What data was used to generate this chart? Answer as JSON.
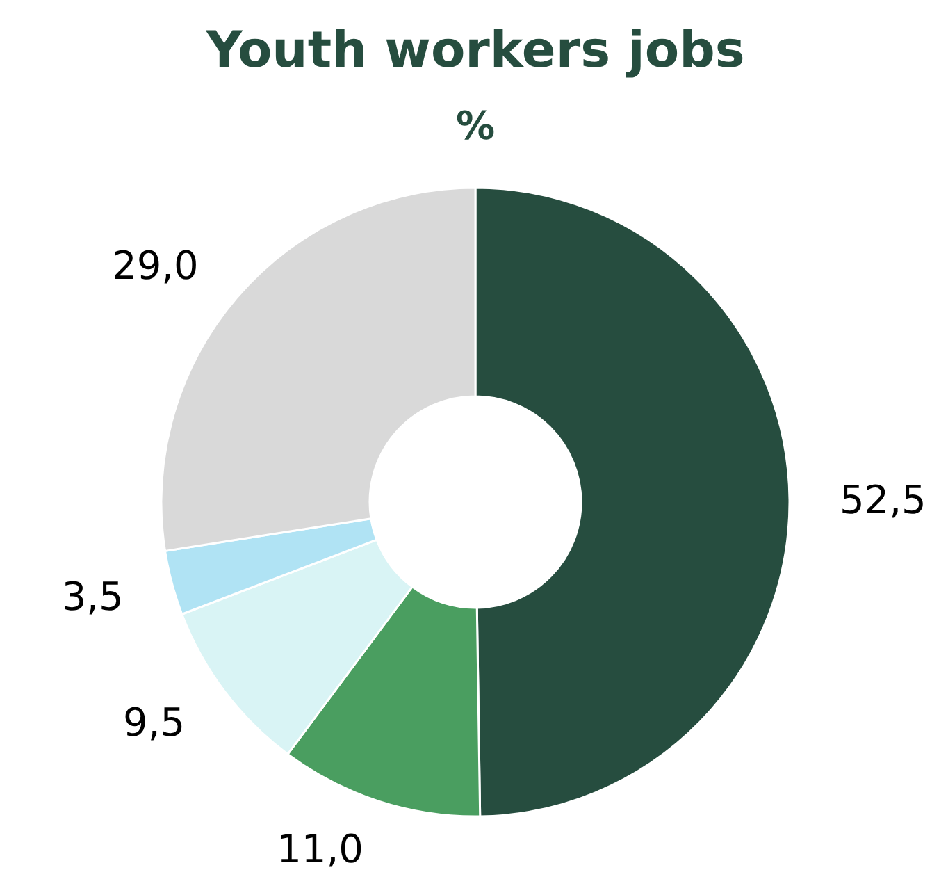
{
  "chart_data": {
    "type": "donut",
    "title": "Youth workers jobs",
    "subtitle": "%",
    "categories": [
      null,
      null,
      null,
      null,
      null
    ],
    "values": [
      52.5,
      11.0,
      9.5,
      3.5,
      29.0
    ],
    "value_labels": [
      "52,5",
      "11,0",
      "9,5",
      "3,5",
      "29,0"
    ],
    "colors": [
      "#264d3f",
      "#4a9e60",
      "#d9f4f5",
      "#b0e3f4",
      "#d9d9d9"
    ]
  }
}
